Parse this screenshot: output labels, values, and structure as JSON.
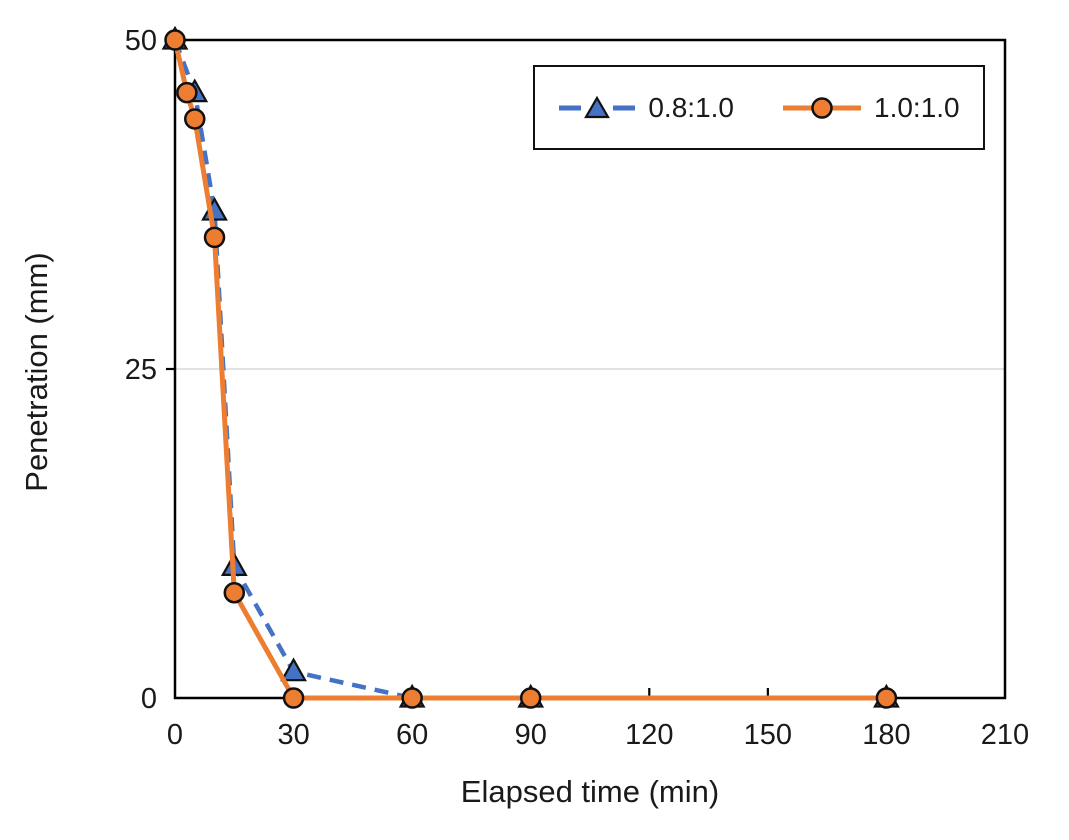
{
  "chart_data": {
    "type": "line",
    "title": "",
    "xlabel": "Elapsed time (min)",
    "ylabel": "Penetration (mm)",
    "xlim": [
      0,
      210
    ],
    "ylim": [
      0,
      50
    ],
    "x_ticks": [
      0,
      30,
      60,
      90,
      120,
      150,
      180,
      210
    ],
    "y_ticks": [
      0,
      25,
      50
    ],
    "y_gridlines": [
      25
    ],
    "grid": "horizontal-only",
    "legend_position": "inside-top-right",
    "axis_color": "#000000",
    "gridline_color": "#d9d9d9",
    "text_color": "#1a1a1a",
    "series": [
      {
        "name": "0.8:1.0",
        "color": "#4472c4",
        "line_style": "dashed",
        "marker": "triangle",
        "marker_edge_color": "#111111",
        "x": [
          0,
          5,
          10,
          15,
          30,
          60,
          90,
          180
        ],
        "y": [
          50,
          46,
          37,
          10,
          2,
          0,
          0,
          0
        ]
      },
      {
        "name": "1.0:1.0",
        "color": "#ed7d31",
        "line_style": "solid",
        "marker": "circle",
        "marker_edge_color": "#111111",
        "x": [
          0,
          3,
          5,
          10,
          15,
          30,
          60,
          90,
          180
        ],
        "y": [
          50,
          46,
          44,
          35,
          8,
          0,
          0,
          0,
          0
        ]
      }
    ]
  }
}
